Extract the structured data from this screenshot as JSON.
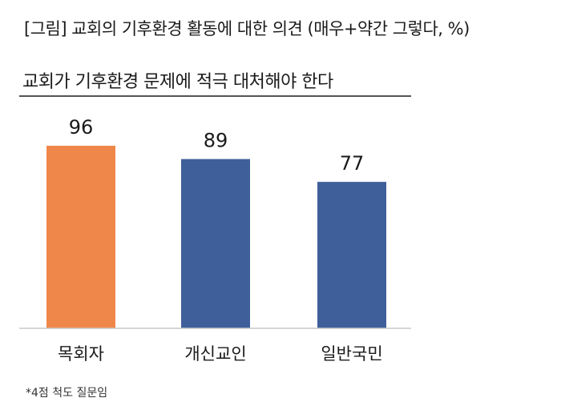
{
  "figure_title": "[그림] 교회의 기후환경 활동에 대한 의견 (매우+약간 그렇다, %)",
  "footnote": "*4점 척도 질문임",
  "chart_data": {
    "type": "bar",
    "title": "교회가 기후환경 문제에 적극 대처해야 한다",
    "xlabel": "",
    "ylabel": "",
    "categories": [
      "목회자",
      "개신교인",
      "일반국민"
    ],
    "values": [
      96,
      89,
      77
    ],
    "ylim": [
      0,
      100
    ],
    "grid": false,
    "legend": "none",
    "colors": [
      "#F0874A",
      "#3F5F9A",
      "#3F5F9A"
    ]
  }
}
